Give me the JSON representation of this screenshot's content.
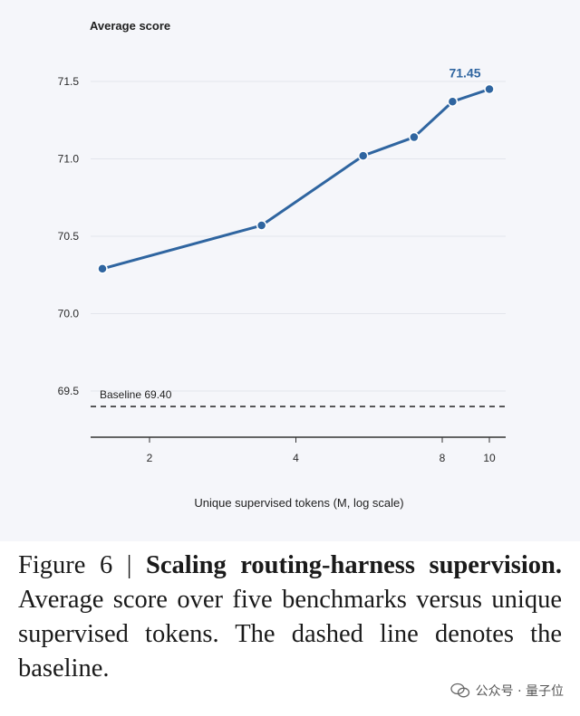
{
  "chart_data": {
    "type": "line",
    "ylabel": "Average score",
    "xlabel": "Unique supervised tokens (M, log scale)",
    "x_scale": "log",
    "xlim": [
      1.6,
      11
    ],
    "ylim": [
      69.2,
      71.7
    ],
    "x_ticks": [
      2,
      4,
      8,
      10
    ],
    "y_ticks": [
      69.5,
      70.0,
      70.5,
      71.0,
      71.5
    ],
    "x_tick_labels": [
      "2",
      "4",
      "8",
      "10"
    ],
    "y_tick_labels": [
      "69.5",
      "70.0",
      "70.5",
      "71.0",
      "71.5"
    ],
    "grid": "horizontal",
    "series": [
      {
        "x": [
          1.6,
          3.4,
          5.5,
          7.0,
          8.4,
          10.0
        ],
        "values": [
          70.29,
          70.57,
          71.02,
          71.14,
          71.37,
          71.45
        ],
        "color": "#2f65a0"
      }
    ],
    "baseline": {
      "value": 69.4,
      "label": "Baseline 69.40"
    },
    "annotations": [
      {
        "x": 10.0,
        "y": 71.45,
        "text": "71.45"
      }
    ]
  },
  "caption": {
    "prefix": "Figure 6 | ",
    "bold": "Scaling routing-harness supervision.",
    "text": " Average score over five benchmarks versus unique supervised tokens. The dashed line denotes the baseline."
  },
  "watermark": {
    "text": "公众号 · 量子位"
  }
}
